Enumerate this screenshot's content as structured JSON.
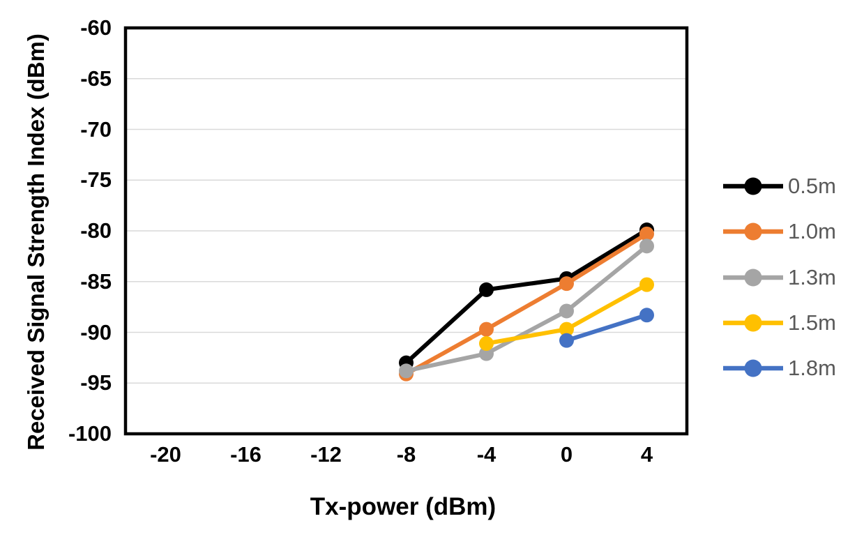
{
  "chart_data": {
    "type": "line",
    "title": "",
    "xlabel": "Tx-power (dBm)",
    "ylabel": "Received Signal Strength Index (dBm)",
    "x_categories": [
      -20,
      -16,
      -12,
      -8,
      -4,
      0,
      4
    ],
    "y_ticks": [
      -60,
      -65,
      -70,
      -75,
      -80,
      -85,
      -90,
      -95,
      -100
    ],
    "ylim": [
      -100,
      -60
    ],
    "grid": "horizontal-only",
    "gridline_color": "#D9D9D9",
    "plot_border_color": "#000000",
    "legend_position": "right",
    "legend_text_color": "#595959",
    "axis_text_color": "#000000",
    "series": [
      {
        "name": "0.5m",
        "color": "#000000",
        "values": [
          null,
          null,
          null,
          -93.0,
          -85.8,
          -84.7,
          -79.9
        ]
      },
      {
        "name": "1.0m",
        "color": "#ED7D31",
        "values": [
          null,
          null,
          null,
          -94.1,
          -89.7,
          -85.2,
          -80.3
        ]
      },
      {
        "name": "1.3m",
        "color": "#A5A5A5",
        "values": [
          null,
          null,
          null,
          -93.8,
          -92.1,
          -87.9,
          -81.5
        ]
      },
      {
        "name": "1.5m",
        "color": "#FFC000",
        "values": [
          null,
          null,
          null,
          null,
          -91.1,
          -89.7,
          -85.3
        ]
      },
      {
        "name": "1.8m",
        "color": "#4472C4",
        "values": [
          null,
          null,
          null,
          null,
          null,
          -90.8,
          -88.3
        ]
      }
    ]
  }
}
